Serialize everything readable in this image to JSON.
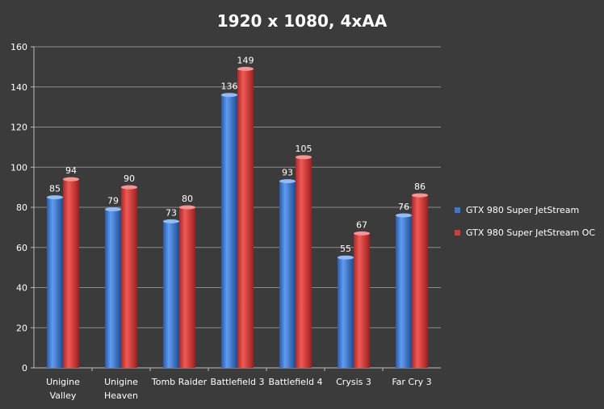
{
  "chart_data": {
    "type": "bar",
    "title": "1920 x 1080, 4xAA",
    "categories": [
      [
        "Unigine",
        "Valley"
      ],
      [
        "Unigine",
        "Heaven"
      ],
      [
        "Tomb Raider"
      ],
      [
        "Battlefield 3"
      ],
      [
        "Battlefield 4"
      ],
      [
        "Crysis 3"
      ],
      [
        "Far Cry 3"
      ]
    ],
    "series": [
      {
        "name": "GTX 980 Super JetStream",
        "color": "#3a78d0",
        "values": [
          85,
          79,
          73,
          136,
          93,
          55,
          76
        ]
      },
      {
        "name": "GTX 980 Super JetStream OC",
        "color": "#d83a36",
        "values": [
          94,
          90,
          80,
          149,
          105,
          67,
          86
        ]
      }
    ],
    "xlabel": "",
    "ylabel": "",
    "ylim": [
      0,
      160
    ],
    "yticks": [
      0,
      20,
      40,
      60,
      80,
      100,
      120,
      140,
      160
    ],
    "grid": true,
    "data_labels": true,
    "legend_position": "right"
  }
}
